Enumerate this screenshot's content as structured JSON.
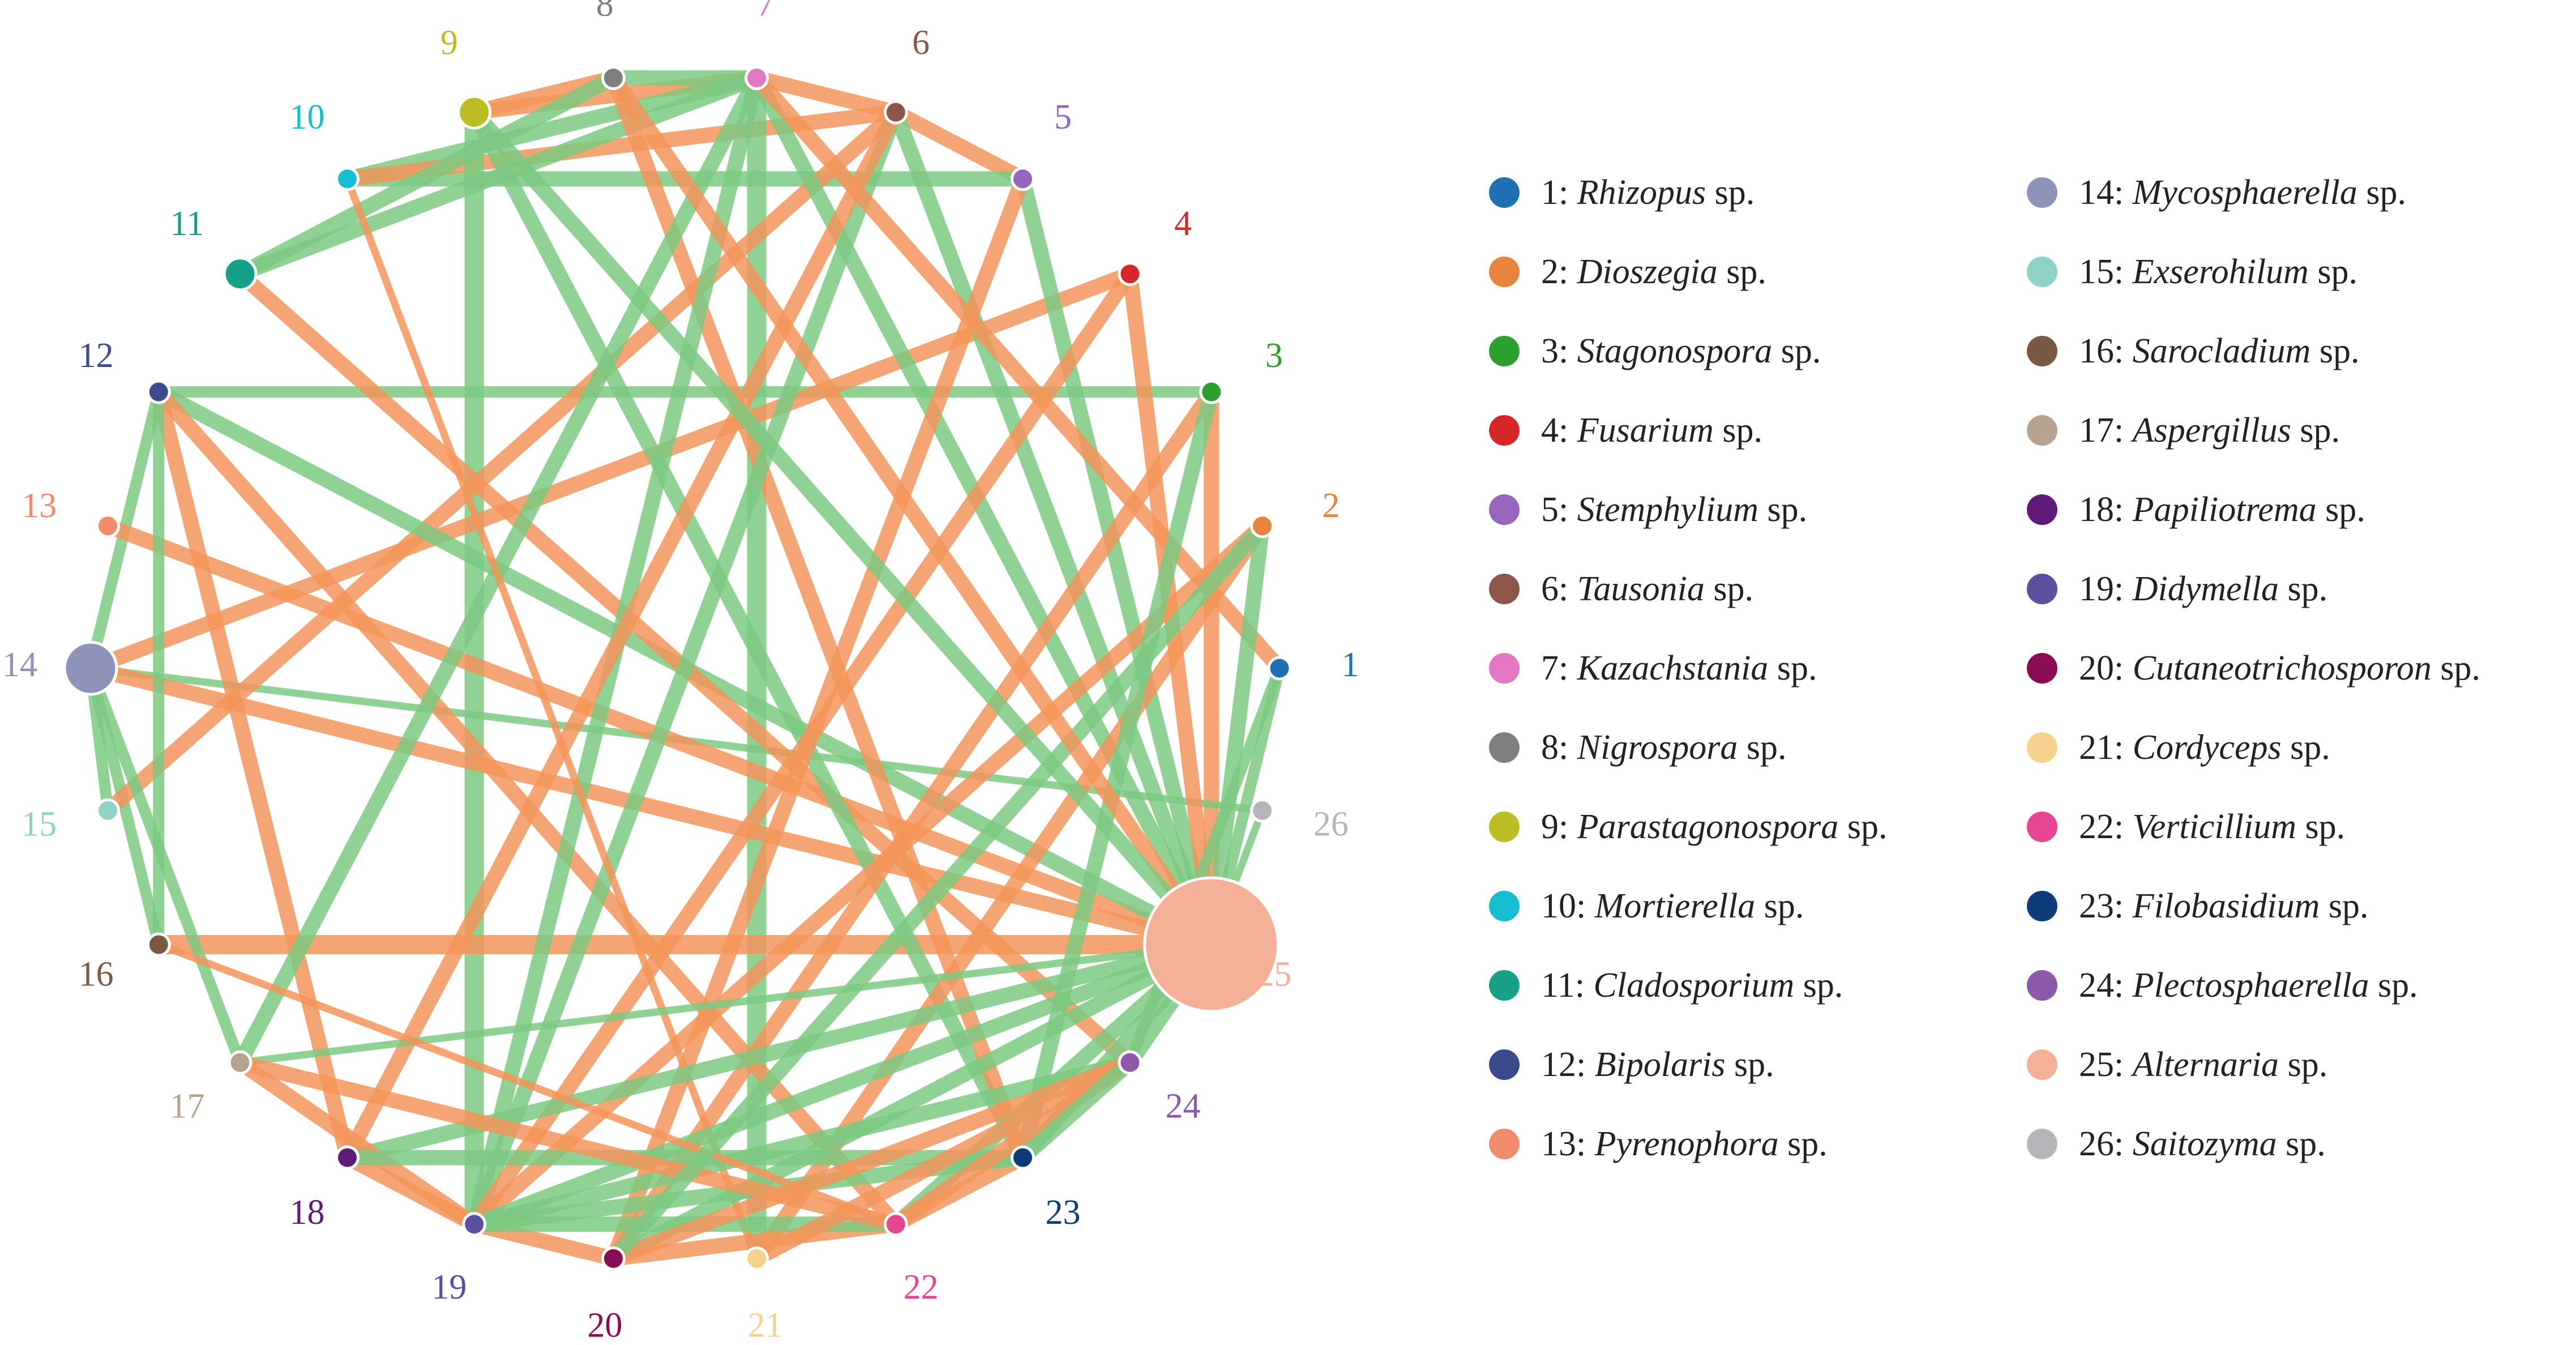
{
  "chart_data": {
    "type": "network",
    "title": "",
    "nodes": [
      {
        "id": 1,
        "label": "1",
        "taxon": "Rhizopus",
        "suffix": "sp.",
        "color": "#1f6fb2",
        "size": 1
      },
      {
        "id": 2,
        "label": "2",
        "taxon": "Dioszegia",
        "suffix": "sp.",
        "color": "#e8843f",
        "size": 1
      },
      {
        "id": 3,
        "label": "3",
        "taxon": "Stagonospora",
        "suffix": "sp.",
        "color": "#2ca02c",
        "size": 1
      },
      {
        "id": 4,
        "label": "4",
        "taxon": "Fusarium",
        "suffix": "sp.",
        "color": "#d62728",
        "size": 1
      },
      {
        "id": 5,
        "label": "5",
        "taxon": "Stemphylium",
        "suffix": "sp.",
        "color": "#9467bd",
        "size": 1
      },
      {
        "id": 6,
        "label": "6",
        "taxon": "Tausonia",
        "suffix": "sp.",
        "color": "#8c564b",
        "size": 1
      },
      {
        "id": 7,
        "label": "7",
        "taxon": "Kazachstania",
        "suffix": "sp.",
        "color": "#e377c2",
        "size": 1
      },
      {
        "id": 8,
        "label": "8",
        "taxon": "Nigrospora",
        "suffix": "sp.",
        "color": "#7f7f7f",
        "size": 1
      },
      {
        "id": 9,
        "label": "9",
        "taxon": "Parastagonospora",
        "suffix": "sp.",
        "color": "#bcbd22",
        "size": 2
      },
      {
        "id": 10,
        "label": "10",
        "taxon": "Mortierella",
        "suffix": "sp.",
        "color": "#17becf",
        "size": 1
      },
      {
        "id": 11,
        "label": "11",
        "taxon": "Cladosporium",
        "suffix": "sp.",
        "color": "#16a085",
        "size": 2
      },
      {
        "id": 12,
        "label": "12",
        "taxon": "Bipolaris",
        "suffix": "sp.",
        "color": "#3b4a8a",
        "size": 1
      },
      {
        "id": 13,
        "label": "13",
        "taxon": "Pyrenophora",
        "suffix": "sp.",
        "color": "#f08c6c",
        "size": 1
      },
      {
        "id": 14,
        "label": "14",
        "taxon": "Mycosphaerella",
        "suffix": "sp.",
        "color": "#8e93b8",
        "size": 4
      },
      {
        "id": 15,
        "label": "15",
        "taxon": "Exserohilum",
        "suffix": "sp.",
        "color": "#8fd3c4",
        "size": 1
      },
      {
        "id": 16,
        "label": "16",
        "taxon": "Sarocladium",
        "suffix": "sp.",
        "color": "#7b5a43",
        "size": 1
      },
      {
        "id": 17,
        "label": "17",
        "taxon": "Aspergillus",
        "suffix": "sp.",
        "color": "#b7a48f",
        "size": 1
      },
      {
        "id": 18,
        "label": "18",
        "taxon": "Papiliotrema",
        "suffix": "sp.",
        "color": "#5e1b78",
        "size": 1
      },
      {
        "id": 19,
        "label": "19",
        "taxon": "Didymella",
        "suffix": "sp.",
        "color": "#5b4f9e",
        "size": 1
      },
      {
        "id": 20,
        "label": "20",
        "taxon": "Cutaneotrichosporon",
        "suffix": "sp.",
        "color": "#8a0d52",
        "size": 1
      },
      {
        "id": 21,
        "label": "21",
        "taxon": "Cordyceps",
        "suffix": "sp.",
        "color": "#f7d28c",
        "size": 1
      },
      {
        "id": 22,
        "label": "22",
        "taxon": "Verticillium",
        "suffix": "sp.",
        "color": "#e64590",
        "size": 1
      },
      {
        "id": 23,
        "label": "23",
        "taxon": "Filobasidium",
        "suffix": "sp.",
        "color": "#0d3c7a",
        "size": 1
      },
      {
        "id": 24,
        "label": "24",
        "taxon": "Plectosphaerella",
        "suffix": "sp.",
        "color": "#8c5aa8",
        "size": 1
      },
      {
        "id": 25,
        "label": "25",
        "taxon": "Alternaria",
        "suffix": "sp.",
        "color": "#f5b197",
        "size": 12
      },
      {
        "id": 26,
        "label": "26",
        "taxon": "Saitozyma",
        "suffix": "sp.",
        "color": "#b4b7ba",
        "size": 1
      }
    ],
    "edge_colors": {
      "green": "#7dc981",
      "orange": "#f3955a"
    },
    "edges": [
      {
        "source": 9,
        "target": 7,
        "color": "orange",
        "weight": 3
      },
      {
        "source": 9,
        "target": 8,
        "color": "orange",
        "weight": 3
      },
      {
        "source": 8,
        "target": 7,
        "color": "green",
        "weight": 3
      },
      {
        "source": 7,
        "target": 6,
        "color": "orange",
        "weight": 3
      },
      {
        "source": 6,
        "target": 5,
        "color": "orange",
        "weight": 3
      },
      {
        "source": 10,
        "target": 5,
        "color": "green",
        "weight": 3
      },
      {
        "source": 10,
        "target": 7,
        "color": "green",
        "weight": 3
      },
      {
        "source": 10,
        "target": 6,
        "color": "orange",
        "weight": 3
      },
      {
        "source": 11,
        "target": 7,
        "color": "green",
        "weight": 3
      },
      {
        "source": 11,
        "target": 8,
        "color": "green",
        "weight": 3
      },
      {
        "source": 9,
        "target": 19,
        "color": "green",
        "weight": 4
      },
      {
        "source": 7,
        "target": 21,
        "color": "green",
        "weight": 4
      },
      {
        "source": 12,
        "target": 3,
        "color": "green",
        "weight": 2
      },
      {
        "source": 3,
        "target": 25,
        "color": "orange",
        "weight": 3
      },
      {
        "source": 12,
        "target": 14,
        "color": "green",
        "weight": 2
      },
      {
        "source": 14,
        "target": 16,
        "color": "green",
        "weight": 2
      },
      {
        "source": 16,
        "target": 25,
        "color": "orange",
        "weight": 4
      },
      {
        "source": 14,
        "target": 26,
        "color": "green",
        "weight": 1
      },
      {
        "source": 14,
        "target": 25,
        "color": "orange",
        "weight": 3
      },
      {
        "source": 13,
        "target": 25,
        "color": "orange",
        "weight": 3
      },
      {
        "source": 14,
        "target": 4,
        "color": "orange",
        "weight": 3
      },
      {
        "source": 15,
        "target": 6,
        "color": "orange",
        "weight": 3
      },
      {
        "source": 12,
        "target": 18,
        "color": "orange",
        "weight": 3
      },
      {
        "source": 12,
        "target": 25,
        "color": "green",
        "weight": 3
      },
      {
        "source": 12,
        "target": 22,
        "color": "orange",
        "weight": 3
      },
      {
        "source": 11,
        "target": 24,
        "color": "orange",
        "weight": 3
      },
      {
        "source": 9,
        "target": 23,
        "color": "green",
        "weight": 3
      },
      {
        "source": 8,
        "target": 23,
        "color": "orange",
        "weight": 3
      },
      {
        "source": 7,
        "target": 25,
        "color": "green",
        "weight": 3
      },
      {
        "source": 6,
        "target": 25,
        "color": "green",
        "weight": 3
      },
      {
        "source": 5,
        "target": 25,
        "color": "green",
        "weight": 3
      },
      {
        "source": 7,
        "target": 17,
        "color": "green",
        "weight": 3
      },
      {
        "source": 7,
        "target": 19,
        "color": "green",
        "weight": 3
      },
      {
        "source": 6,
        "target": 19,
        "color": "green",
        "weight": 3
      },
      {
        "source": 5,
        "target": 20,
        "color": "orange",
        "weight": 3
      },
      {
        "source": 6,
        "target": 18,
        "color": "orange",
        "weight": 3
      },
      {
        "source": 10,
        "target": 21,
        "color": "orange",
        "weight": 1
      },
      {
        "source": 4,
        "target": 25,
        "color": "orange",
        "weight": 3
      },
      {
        "source": 4,
        "target": 19,
        "color": "orange",
        "weight": 3
      },
      {
        "source": 3,
        "target": 20,
        "color": "orange",
        "weight": 3
      },
      {
        "source": 2,
        "target": 19,
        "color": "orange",
        "weight": 3
      },
      {
        "source": 2,
        "target": 21,
        "color": "orange",
        "weight": 3
      },
      {
        "source": 1,
        "target": 7,
        "color": "orange",
        "weight": 3
      },
      {
        "source": 3,
        "target": 23,
        "color": "green",
        "weight": 3
      },
      {
        "source": 2,
        "target": 25,
        "color": "green",
        "weight": 3
      },
      {
        "source": 1,
        "target": 25,
        "color": "green",
        "weight": 2
      },
      {
        "source": 26,
        "target": 25,
        "color": "green",
        "weight": 1
      },
      {
        "source": 25,
        "target": 24,
        "color": "green",
        "weight": 3
      },
      {
        "source": 25,
        "target": 22,
        "color": "green",
        "weight": 3
      },
      {
        "source": 25,
        "target": 20,
        "color": "green",
        "weight": 3
      },
      {
        "source": 25,
        "target": 19,
        "color": "green",
        "weight": 3
      },
      {
        "source": 25,
        "target": 18,
        "color": "green",
        "weight": 3
      },
      {
        "source": 25,
        "target": 17,
        "color": "green",
        "weight": 1
      },
      {
        "source": 25,
        "target": 23,
        "color": "green",
        "weight": 3
      },
      {
        "source": 17,
        "target": 19,
        "color": "orange",
        "weight": 3
      },
      {
        "source": 18,
        "target": 19,
        "color": "orange",
        "weight": 3
      },
      {
        "source": 19,
        "target": 20,
        "color": "orange",
        "weight": 3
      },
      {
        "source": 20,
        "target": 22,
        "color": "orange",
        "weight": 3
      },
      {
        "source": 22,
        "target": 23,
        "color": "orange",
        "weight": 3
      },
      {
        "source": 19,
        "target": 23,
        "color": "green",
        "weight": 3
      },
      {
        "source": 18,
        "target": 23,
        "color": "green",
        "weight": 3
      },
      {
        "source": 19,
        "target": 24,
        "color": "green",
        "weight": 3
      },
      {
        "source": 19,
        "target": 22,
        "color": "green",
        "weight": 3
      },
      {
        "source": 20,
        "target": 24,
        "color": "orange",
        "weight": 3
      },
      {
        "source": 21,
        "target": 24,
        "color": "orange",
        "weight": 3
      },
      {
        "source": 22,
        "target": 24,
        "color": "orange",
        "weight": 3
      },
      {
        "source": 23,
        "target": 24,
        "color": "green",
        "weight": 3
      },
      {
        "source": 17,
        "target": 22,
        "color": "orange",
        "weight": 3
      },
      {
        "source": 14,
        "target": 17,
        "color": "green",
        "weight": 2
      },
      {
        "source": 16,
        "target": 22,
        "color": "orange",
        "weight": 1
      },
      {
        "source": 15,
        "target": 14,
        "color": "green",
        "weight": 2
      },
      {
        "source": 12,
        "target": 16,
        "color": "green",
        "weight": 2
      },
      {
        "source": 2,
        "target": 20,
        "color": "green",
        "weight": 3
      },
      {
        "source": 1,
        "target": 24,
        "color": "green",
        "weight": 2
      },
      {
        "source": 8,
        "target": 25,
        "color": "orange",
        "weight": 3
      },
      {
        "source": 9,
        "target": 25,
        "color": "green",
        "weight": 3
      }
    ]
  }
}
